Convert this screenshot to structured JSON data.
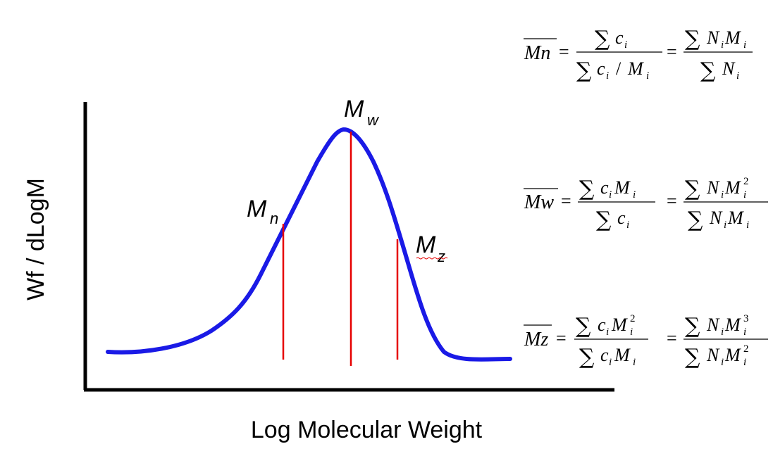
{
  "axes": {
    "x_label": "Log Molecular Weight",
    "y_label": "Wf / dLogM"
  },
  "colors": {
    "curve": "#1a1ae6",
    "markers": "#e60000",
    "axis": "#000000"
  },
  "markers": [
    {
      "id": "mn",
      "base": "M",
      "sub": "n"
    },
    {
      "id": "mw",
      "base": "M",
      "sub": "w"
    },
    {
      "id": "mz",
      "base": "M",
      "sub": "z"
    }
  ],
  "equations": {
    "mn": {
      "lhs": "Mn"
    },
    "mw": {
      "lhs": "Mw"
    },
    "mz": {
      "lhs": "Mz"
    },
    "symbols": {
      "sum": "∑",
      "equals": "=",
      "slash": "/",
      "c": "c",
      "M": "M",
      "N": "N",
      "i": "i",
      "exp2": "2",
      "exp3": "3"
    }
  }
}
